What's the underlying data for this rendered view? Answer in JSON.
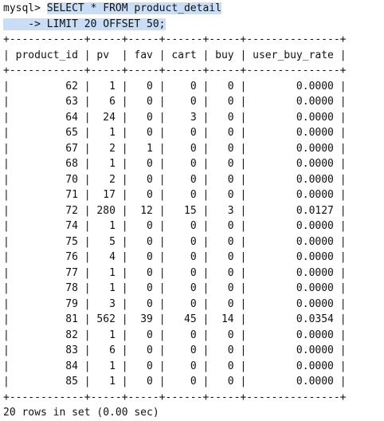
{
  "prompt": "mysql>",
  "continuation_prompt": "    ->",
  "query_line1": "SELECT * FROM product_detail",
  "query_line2": "LIMIT 20 OFFSET 50;",
  "columns": [
    "product_id",
    "pv",
    "fav",
    "cart",
    "buy",
    "user_buy_rate"
  ],
  "rows": [
    [
      "62",
      "1",
      "0",
      "0",
      "0",
      "0.0000"
    ],
    [
      "63",
      "6",
      "0",
      "0",
      "0",
      "0.0000"
    ],
    [
      "64",
      "24",
      "0",
      "3",
      "0",
      "0.0000"
    ],
    [
      "65",
      "1",
      "0",
      "0",
      "0",
      "0.0000"
    ],
    [
      "67",
      "2",
      "1",
      "0",
      "0",
      "0.0000"
    ],
    [
      "68",
      "1",
      "0",
      "0",
      "0",
      "0.0000"
    ],
    [
      "70",
      "2",
      "0",
      "0",
      "0",
      "0.0000"
    ],
    [
      "71",
      "17",
      "0",
      "0",
      "0",
      "0.0000"
    ],
    [
      "72",
      "280",
      "12",
      "15",
      "3",
      "0.0127"
    ],
    [
      "74",
      "1",
      "0",
      "0",
      "0",
      "0.0000"
    ],
    [
      "75",
      "5",
      "0",
      "0",
      "0",
      "0.0000"
    ],
    [
      "76",
      "4",
      "0",
      "0",
      "0",
      "0.0000"
    ],
    [
      "77",
      "1",
      "0",
      "0",
      "0",
      "0.0000"
    ],
    [
      "78",
      "1",
      "0",
      "0",
      "0",
      "0.0000"
    ],
    [
      "79",
      "3",
      "0",
      "0",
      "0",
      "0.0000"
    ],
    [
      "81",
      "562",
      "39",
      "45",
      "14",
      "0.0354"
    ],
    [
      "82",
      "1",
      "0",
      "0",
      "0",
      "0.0000"
    ],
    [
      "83",
      "6",
      "0",
      "0",
      "0",
      "0.0000"
    ],
    [
      "84",
      "1",
      "0",
      "0",
      "0",
      "0.0000"
    ],
    [
      "85",
      "1",
      "0",
      "0",
      "0",
      "0.0000"
    ]
  ],
  "footer": "20 rows in set (0.00 sec)"
}
